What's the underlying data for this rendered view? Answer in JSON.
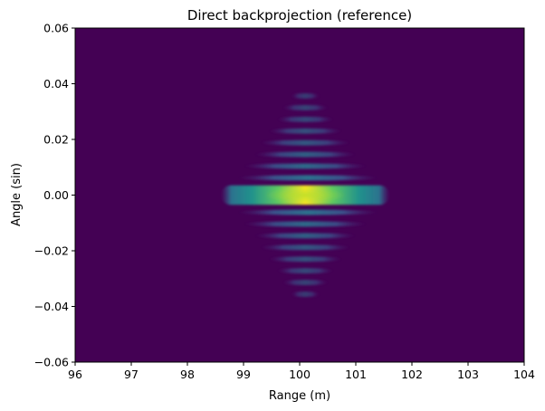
{
  "chart_data": {
    "type": "heatmap",
    "title": "Direct backprojection (reference)",
    "xlabel": "Range (m)",
    "ylabel": "Angle (sin)",
    "xlim": [
      96,
      104
    ],
    "ylim": [
      -0.06,
      0.06
    ],
    "xticks": [
      96,
      97,
      98,
      99,
      100,
      101,
      102,
      103,
      104
    ],
    "xtick_labels": [
      "96",
      "97",
      "98",
      "99",
      "100",
      "101",
      "102",
      "103",
      "104"
    ],
    "yticks": [
      -0.06,
      -0.04,
      -0.02,
      0.0,
      0.02,
      0.04,
      0.06
    ],
    "ytick_labels": [
      "−0.06",
      "−0.04",
      "−0.02",
      "0.00",
      "0.02",
      "0.04",
      "0.06"
    ],
    "colormap": "viridis",
    "background_color": "#440154",
    "grid": false,
    "peak": {
      "range": 100.1,
      "angle": 0.0
    },
    "main_lobe": {
      "range_min": 98.6,
      "range_max": 101.6,
      "angle_halfwidth": 0.0035
    },
    "sidelobes": [
      {
        "angle": 0.0062,
        "range_min": 98.9,
        "range_max": 101.4,
        "level": 0.3
      },
      {
        "angle": 0.0104,
        "range_min": 99.0,
        "range_max": 101.2,
        "level": 0.26
      },
      {
        "angle": 0.0146,
        "range_min": 99.2,
        "range_max": 101.0,
        "level": 0.22
      },
      {
        "angle": 0.0188,
        "range_min": 99.3,
        "range_max": 100.9,
        "level": 0.19
      },
      {
        "angle": 0.023,
        "range_min": 99.45,
        "range_max": 100.75,
        "level": 0.16
      },
      {
        "angle": 0.0272,
        "range_min": 99.6,
        "range_max": 100.6,
        "level": 0.13
      },
      {
        "angle": 0.0314,
        "range_min": 99.7,
        "range_max": 100.5,
        "level": 0.11
      },
      {
        "angle": 0.0356,
        "range_min": 99.85,
        "range_max": 100.35,
        "level": 0.08
      },
      {
        "angle": -0.0062,
        "range_min": 98.9,
        "range_max": 101.4,
        "level": 0.3
      },
      {
        "angle": -0.0104,
        "range_min": 99.0,
        "range_max": 101.2,
        "level": 0.26
      },
      {
        "angle": -0.0146,
        "range_min": 99.2,
        "range_max": 101.0,
        "level": 0.22
      },
      {
        "angle": -0.0188,
        "range_min": 99.3,
        "range_max": 100.9,
        "level": 0.19
      },
      {
        "angle": -0.023,
        "range_min": 99.45,
        "range_max": 100.75,
        "level": 0.16
      },
      {
        "angle": -0.0272,
        "range_min": 99.6,
        "range_max": 100.6,
        "level": 0.13
      },
      {
        "angle": -0.0314,
        "range_min": 99.7,
        "range_max": 100.5,
        "level": 0.11
      },
      {
        "angle": -0.0356,
        "range_min": 99.85,
        "range_max": 100.35,
        "level": 0.08
      }
    ]
  }
}
